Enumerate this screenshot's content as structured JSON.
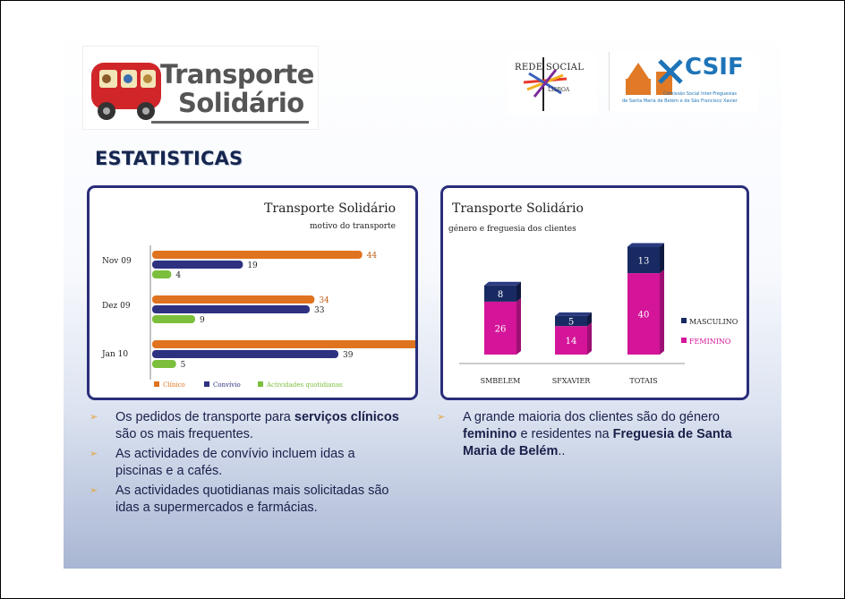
{
  "logo": {
    "line1": "Transporte",
    "line2": "Solidário"
  },
  "partner_logo_1": {
    "text": "REDE SOCIAL",
    "sub": "LISBOA"
  },
  "partner_logo_2": {
    "title": "CSIF",
    "sub1": "Comissão Social Inter-Freguesias",
    "sub2": "de Santa Maria de Belém e de São Francisco Xavier"
  },
  "heading": "ESTATISTICAS",
  "chart_data": [
    {
      "type": "bar",
      "orientation": "horizontal",
      "title": "Transporte Solidário",
      "subtitle": "motivo do transporte",
      "categories": [
        "Nov 09",
        "Dez 09",
        "Jan 10"
      ],
      "series": [
        {
          "name": "Clínico",
          "values": [
            44,
            34,
            57
          ],
          "color": "#e0731f"
        },
        {
          "name": "Convívio",
          "values": [
            19,
            33,
            39
          ],
          "color": "#2d3180"
        },
        {
          "name": "Actividades quotidianas",
          "values": [
            4,
            9,
            5
          ],
          "color": "#7bbf3c"
        }
      ],
      "xlim": [
        0,
        60
      ],
      "legend": "bottom"
    },
    {
      "type": "bar",
      "stacked": true,
      "title": "Transporte Solidário",
      "subtitle": "género e freguesia dos clientes",
      "categories": [
        "SMBELEM",
        "SFXAVIER",
        "TOTAIS"
      ],
      "series": [
        {
          "name": "FEMININO",
          "values": [
            26,
            14,
            40
          ],
          "color": "#d4159a"
        },
        {
          "name": "MASCULINO",
          "values": [
            8,
            5,
            13
          ],
          "color": "#182a62"
        }
      ],
      "ylim": [
        0,
        55
      ],
      "legend": "right"
    }
  ],
  "bullets_left": [
    {
      "pre": "Os pedidos de transporte para ",
      "bold": "serviços clínicos",
      "post": "",
      "line2": "são os mais frequentes."
    },
    {
      "pre": "As actividades de convívio incluem idas a",
      "bold": "",
      "post": "",
      "line2": "piscinas e a cafés."
    },
    {
      "pre": "As actividades quotidianas mais solicitadas são",
      "bold": "",
      "post": "",
      "line2": "idas a supermercados e farmácias."
    }
  ],
  "bullet_right": {
    "line1": "A grande maioria dos clientes são do género",
    "line2_bold": "feminino",
    "line2_post": " e residentes na ",
    "line2_bold2": "Freguesia de Santa",
    "line3_bold": "Maria de Belém",
    "line3_post": ".."
  },
  "bullet_glyph": "➢"
}
